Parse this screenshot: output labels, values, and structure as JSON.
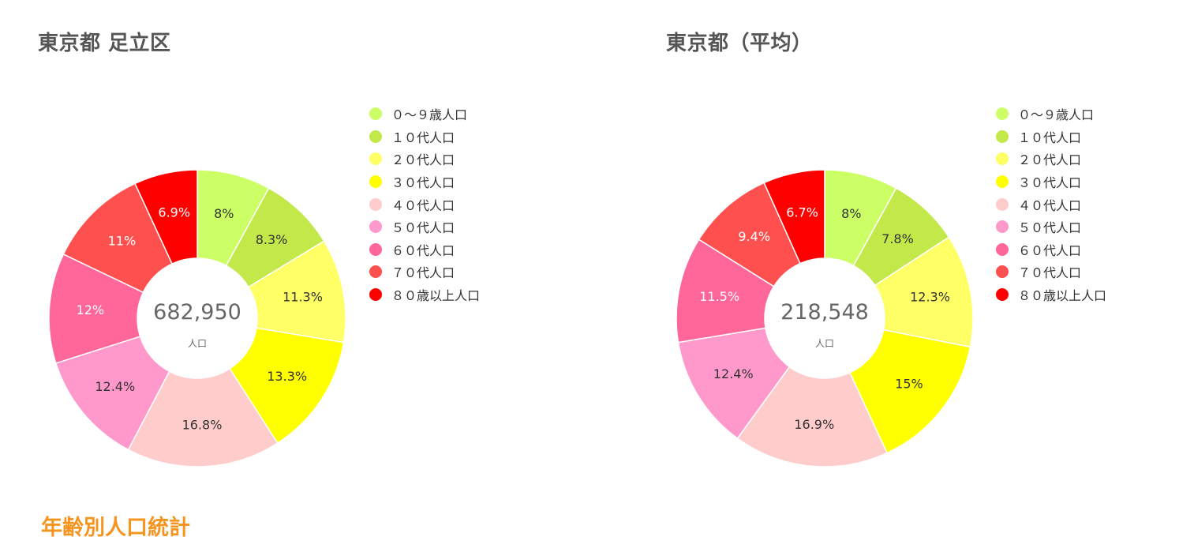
{
  "footer_title": "年齢別人口統計",
  "categories": [
    "０～９歳人口",
    "１０代人口",
    "２０代人口",
    "３０代人口",
    "４０代人口",
    "５０代人口",
    "６０代人口",
    "７０代人口",
    "８０歳以上人口"
  ],
  "colors": [
    "#ccff66",
    "#c2e84a",
    "#ffff66",
    "#ffff00",
    "#ffcccc",
    "#ff99cc",
    "#ff6699",
    "#ff5050",
    "#ff0000"
  ],
  "label_colors": [
    "#333333",
    "#333333",
    "#333333",
    "#333333",
    "#333333",
    "#333333",
    "#ffffff",
    "#ffffff",
    "#ffffff"
  ],
  "chart_data": [
    {
      "type": "pie",
      "title": "東京都 足立区",
      "center_value": "682,950",
      "center_unit": "人口",
      "categories": [
        "０～９歳人口",
        "１０代人口",
        "２０代人口",
        "３０代人口",
        "４０代人口",
        "５０代人口",
        "６０代人口",
        "７０代人口",
        "８０歳以上人口"
      ],
      "values": [
        8,
        8.3,
        11.3,
        13.3,
        16.8,
        12.4,
        12,
        11,
        6.9
      ],
      "value_labels": [
        "8%",
        "8.3%",
        "11.3%",
        "13.3%",
        "16.8%",
        "12.4%",
        "12%",
        "11%",
        "6.9%"
      ],
      "legend": "right"
    },
    {
      "type": "pie",
      "title": "東京都（平均）",
      "center_value": "218,548",
      "center_unit": "人口",
      "categories": [
        "０～９歳人口",
        "１０代人口",
        "２０代人口",
        "３０代人口",
        "４０代人口",
        "５０代人口",
        "６０代人口",
        "７０代人口",
        "８０歳以上人口"
      ],
      "values": [
        8,
        7.8,
        12.3,
        15,
        16.9,
        12.4,
        11.5,
        9.4,
        6.7
      ],
      "value_labels": [
        "8%",
        "7.8%",
        "12.3%",
        "15%",
        "16.9%",
        "12.4%",
        "11.5%",
        "9.4%",
        "6.7%"
      ],
      "legend": "right"
    }
  ]
}
